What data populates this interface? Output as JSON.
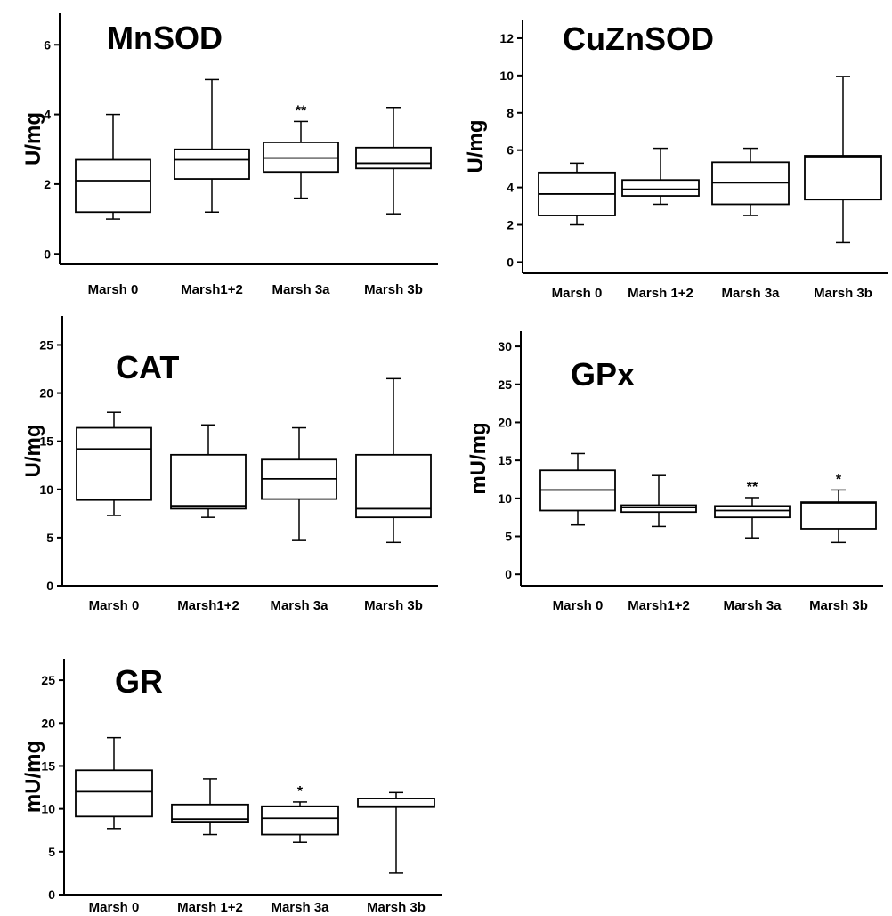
{
  "chart_data": [
    {
      "type": "box",
      "title": "MnSOD",
      "ylabel": "U/mg",
      "categories": [
        "Marsh 0",
        "Marsh1+2",
        "Marsh 3a",
        "Marsh 3b"
      ],
      "yticks": [
        "0",
        "2",
        "4",
        "6"
      ],
      "ylim": [
        -0.3,
        6.9
      ],
      "boxes": [
        {
          "min": 1.0,
          "q1": 1.2,
          "median": 2.1,
          "q3": 2.7,
          "max": 4.0,
          "annotation": ""
        },
        {
          "min": 1.2,
          "q1": 2.15,
          "median": 2.7,
          "q3": 3.0,
          "max": 5.0,
          "annotation": ""
        },
        {
          "min": 1.6,
          "q1": 2.35,
          "median": 2.75,
          "q3": 3.2,
          "max": 3.8,
          "annotation": "**"
        },
        {
          "min": 1.15,
          "q1": 2.45,
          "median": 2.6,
          "q3": 3.05,
          "max": 4.2,
          "annotation": ""
        }
      ]
    },
    {
      "type": "box",
      "title": "CuZnSOD",
      "ylabel": "U/mg",
      "categories": [
        "Marsh 0",
        "Marsh 1+2",
        "Marsh 3a",
        "Marsh 3b"
      ],
      "yticks": [
        "0",
        "2",
        "4",
        "6",
        "8",
        "10",
        "12"
      ],
      "ylim": [
        -0.6,
        13.0
      ],
      "boxes": [
        {
          "min": 2.0,
          "q1": 2.5,
          "median": 3.65,
          "q3": 4.8,
          "max": 5.3,
          "annotation": ""
        },
        {
          "min": 3.1,
          "q1": 3.55,
          "median": 3.9,
          "q3": 4.4,
          "max": 6.1,
          "annotation": ""
        },
        {
          "min": 2.5,
          "q1": 3.1,
          "median": 4.25,
          "q3": 5.35,
          "max": 6.1,
          "annotation": ""
        },
        {
          "min": 1.05,
          "q1": 3.35,
          "median": 5.65,
          "q3": 5.7,
          "max": 9.95,
          "annotation": ""
        }
      ]
    },
    {
      "type": "box",
      "title": "CAT",
      "ylabel": "U/mg",
      "categories": [
        "Marsh 0",
        "Marsh1+2",
        "Marsh 3a",
        "Marsh 3b"
      ],
      "yticks": [
        "0",
        "5",
        "10",
        "15",
        "20",
        "25"
      ],
      "ylim": [
        0,
        28
      ],
      "boxes": [
        {
          "min": 7.3,
          "q1": 8.9,
          "median": 14.2,
          "q3": 16.4,
          "max": 18.0,
          "annotation": ""
        },
        {
          "min": 7.1,
          "q1": 8.0,
          "median": 8.3,
          "q3": 13.6,
          "max": 16.7,
          "annotation": ""
        },
        {
          "min": 4.7,
          "q1": 9.0,
          "median": 11.1,
          "q3": 13.1,
          "max": 16.4,
          "annotation": ""
        },
        {
          "min": 4.5,
          "q1": 7.1,
          "median": 8.0,
          "q3": 13.6,
          "max": 21.5,
          "annotation": ""
        }
      ]
    },
    {
      "type": "box",
      "title": "GPx",
      "ylabel": "mU/mg",
      "categories": [
        "Marsh 0",
        "Marsh1+2",
        "Marsh 3a",
        "Marsh 3b"
      ],
      "yticks": [
        "0",
        "5",
        "10",
        "15",
        "20",
        "25",
        "30"
      ],
      "ylim": [
        -1.5,
        32
      ],
      "boxes": [
        {
          "min": 6.5,
          "q1": 8.4,
          "median": 11.1,
          "q3": 13.7,
          "max": 15.9,
          "annotation": ""
        },
        {
          "min": 6.3,
          "q1": 8.2,
          "median": 8.8,
          "q3": 9.1,
          "max": 13.0,
          "annotation": ""
        },
        {
          "min": 4.8,
          "q1": 7.5,
          "median": 8.4,
          "q3": 9.0,
          "max": 10.1,
          "annotation": "**"
        },
        {
          "min": 4.2,
          "q1": 6.0,
          "median": 9.4,
          "q3": 9.5,
          "max": 11.1,
          "annotation": "*"
        }
      ]
    },
    {
      "type": "box",
      "title": "GR",
      "ylabel": "mU/mg",
      "categories": [
        "Marsh 0",
        "Marsh 1+2",
        "Marsh 3a",
        "Marsh 3b"
      ],
      "yticks": [
        "0",
        "5",
        "10",
        "15",
        "20",
        "25"
      ],
      "ylim": [
        0,
        27.5
      ],
      "boxes": [
        {
          "min": 7.7,
          "q1": 9.1,
          "median": 12.0,
          "q3": 14.5,
          "max": 18.3,
          "annotation": ""
        },
        {
          "min": 7.0,
          "q1": 8.5,
          "median": 8.8,
          "q3": 10.5,
          "max": 13.5,
          "annotation": ""
        },
        {
          "min": 6.1,
          "q1": 7.0,
          "median": 8.9,
          "q3": 10.3,
          "max": 10.8,
          "annotation": "*"
        },
        {
          "min": 2.5,
          "q1": 10.2,
          "median": 10.3,
          "q3": 11.2,
          "max": 11.9,
          "annotation": ""
        }
      ]
    }
  ]
}
